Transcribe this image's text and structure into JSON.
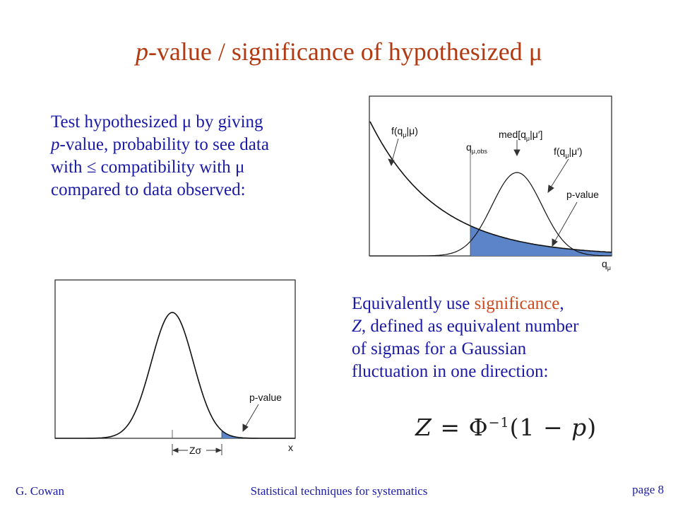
{
  "slide": {
    "title_italic": "p",
    "title_rest": "-value / significance of hypothesized ",
    "title_symbol": "μ"
  },
  "para1": {
    "l1_a": "Test hypothesized ",
    "l1_mu": "μ",
    "l1_b": " by giving",
    "l2_italic": "p",
    "l2_b": "-value, probability to see data",
    "l3_a": "with ≤ compatibility with ",
    "l3_mu": "μ",
    "l4": "compared to data observed:"
  },
  "para2": {
    "l1_a": "Equivalently use ",
    "l1_accent": "significance",
    "l1_b": ",",
    "l2_italic": "Z",
    "l2_b": ", defined as equivalent number",
    "l3": "of sigmas for a Gaussian",
    "l4": "fluctuation in one direction:"
  },
  "formula": {
    "lhs": "Z",
    "eq": " = Φ",
    "sup": "−1",
    "rhs_a": "(1 − ",
    "rhs_p": "p",
    "rhs_b": ")"
  },
  "figure1": {
    "label_f_null": "f(q",
    "label_f_null_sub": "μ",
    "label_f_null_end": "|μ)",
    "label_med": "med[q",
    "label_med_sub": "μ",
    "label_med_end": "|μ′]",
    "label_f_alt": "f(q",
    "label_f_alt_sub": "μ",
    "label_f_alt_end": "|μ′)",
    "label_qobs": "q",
    "label_qobs_sub": "μ,obs",
    "label_pvalue": "p-value",
    "axis_label": "q",
    "axis_label_sub": "μ",
    "fill_color": "#5b85c8"
  },
  "figure2": {
    "label_pvalue": "p-value",
    "label_zsigma": "Zσ",
    "axis_label": "x",
    "fill_color": "#5b85c8"
  },
  "footer": {
    "author": "G. Cowan",
    "center": "Statistical techniques for systematics",
    "page": "page 8"
  }
}
